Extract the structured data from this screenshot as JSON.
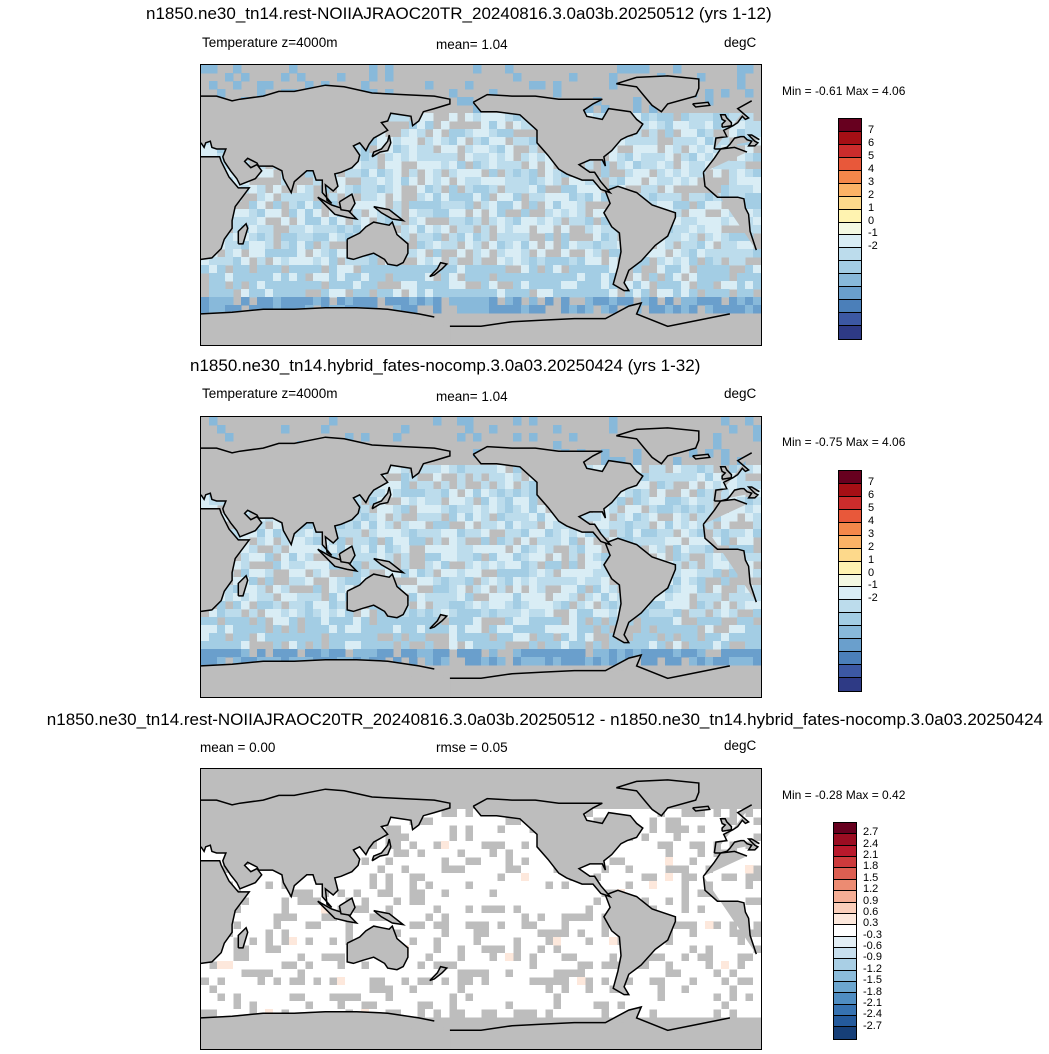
{
  "panels": [
    {
      "title": "n1850.ne30_tn14.rest-NOIIAJRAOC20TR_20240816.3.0a03b.20250512 (yrs 1-12)",
      "left_label": "Temperature z=4000m",
      "mid_label": "mean=   1.04",
      "right_label": "degC",
      "minmax": "Min =  -0.61 Max =   4.06",
      "colorbar_labels": [
        "7",
        "6",
        "5",
        "4",
        "3",
        "2",
        "1",
        "0",
        "-1",
        "-2"
      ],
      "colors": [
        "#67001f",
        "#a50f15",
        "#cb2c2c",
        "#e8583a",
        "#f4874a",
        "#fbb266",
        "#fdd98b",
        "#fff3b0",
        "#f3f8e2",
        "#d9edf5",
        "#bcdcec",
        "#a3cde4",
        "#88b9da",
        "#6a9fcc",
        "#4b7fb9",
        "#3c58a3",
        "#2e3a85"
      ],
      "range": [
        -2.5,
        7.5
      ],
      "style": "full"
    },
    {
      "title": "n1850.ne30_tn14.hybrid_fates-nocomp.3.0a03.20250424 (yrs 1-32)",
      "left_label": "Temperature z=4000m",
      "mid_label": "mean=   1.04",
      "right_label": "degC",
      "minmax": "Min =  -0.75 Max =   4.06",
      "colorbar_labels": [
        "7",
        "6",
        "5",
        "4",
        "3",
        "2",
        "1",
        "0",
        "-1",
        "-2"
      ],
      "colors": [
        "#67001f",
        "#a50f15",
        "#cb2c2c",
        "#e8583a",
        "#f4874a",
        "#fbb266",
        "#fdd98b",
        "#fff3b0",
        "#f3f8e2",
        "#d9edf5",
        "#bcdcec",
        "#a3cde4",
        "#88b9da",
        "#6a9fcc",
        "#4b7fb9",
        "#3c58a3",
        "#2e3a85"
      ],
      "range": [
        -2.5,
        7.5
      ],
      "style": "full"
    },
    {
      "title": "n1850.ne30_tn14.rest-NOIIAJRAOC20TR_20240816.3.0a03b.20250512 - n1850.ne30_tn14.hybrid_fates-nocomp.3.0a03.20250424",
      "left_label": "mean =   0.00",
      "mid_label": "rmse =   0.05",
      "right_label": "degC",
      "minmax": "Min =  -0.28 Max =   0.42",
      "colorbar_labels": [
        "2.7",
        "2.4",
        "2.1",
        "1.8",
        "1.5",
        "1.2",
        "0.9",
        "0.6",
        "0.3",
        "-0.3",
        "-0.6",
        "-0.9",
        "-1.2",
        "-1.5",
        "-1.8",
        "-2.1",
        "-2.4",
        "-2.7"
      ],
      "colors": [
        "#67001f",
        "#9b0d22",
        "#b8192c",
        "#cc3a3c",
        "#dd5f52",
        "#ec8b72",
        "#f5ae95",
        "#fbcfbb",
        "#fde8dc",
        "#ffffff",
        "#e2eef5",
        "#c7dfee",
        "#a9cfe5",
        "#8bbcdb",
        "#6ca6cf",
        "#4f8dc2",
        "#3672b1",
        "#245a9c",
        "#163f78"
      ],
      "range": [
        -3.0,
        3.0
      ],
      "style": "diff"
    }
  ]
}
